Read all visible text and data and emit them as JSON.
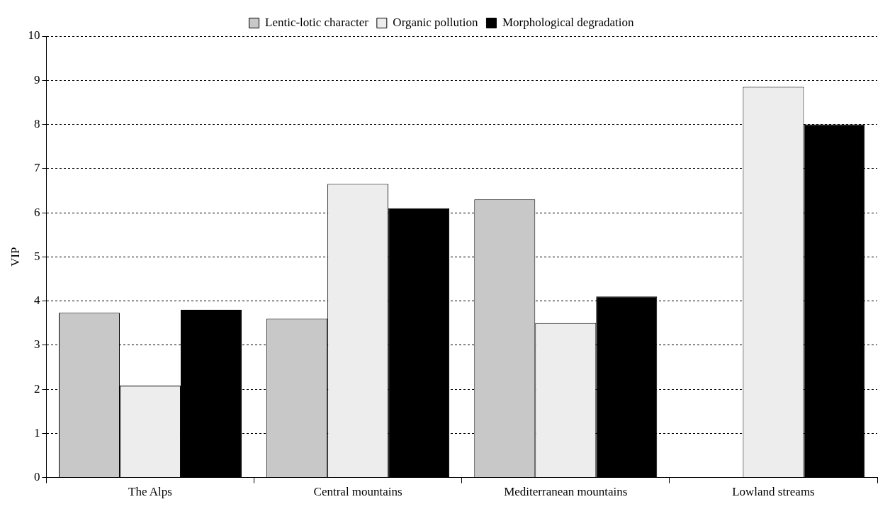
{
  "chart_data": {
    "type": "bar",
    "ylabel": "VIP",
    "categories": [
      "The Alps",
      "Central mountains",
      "Mediterranean mountains",
      "Lowland streams"
    ],
    "series": [
      {
        "name": "Lentic-lotic character",
        "color": "#c8c8c8",
        "values": [
          3.73,
          3.6,
          6.3,
          null
        ]
      },
      {
        "name": "Organic pollution",
        "color": "#ededed",
        "values": [
          2.08,
          6.65,
          3.5,
          8.85
        ]
      },
      {
        "name": "Morphological degradation",
        "color": "#000000",
        "values": [
          3.8,
          6.1,
          4.1,
          8.0
        ]
      }
    ],
    "ylim": [
      0,
      10
    ],
    "yticks": [
      0,
      1,
      2,
      3,
      4,
      5,
      6,
      7,
      8,
      9,
      10
    ],
    "grid": "y",
    "legend": "top"
  }
}
